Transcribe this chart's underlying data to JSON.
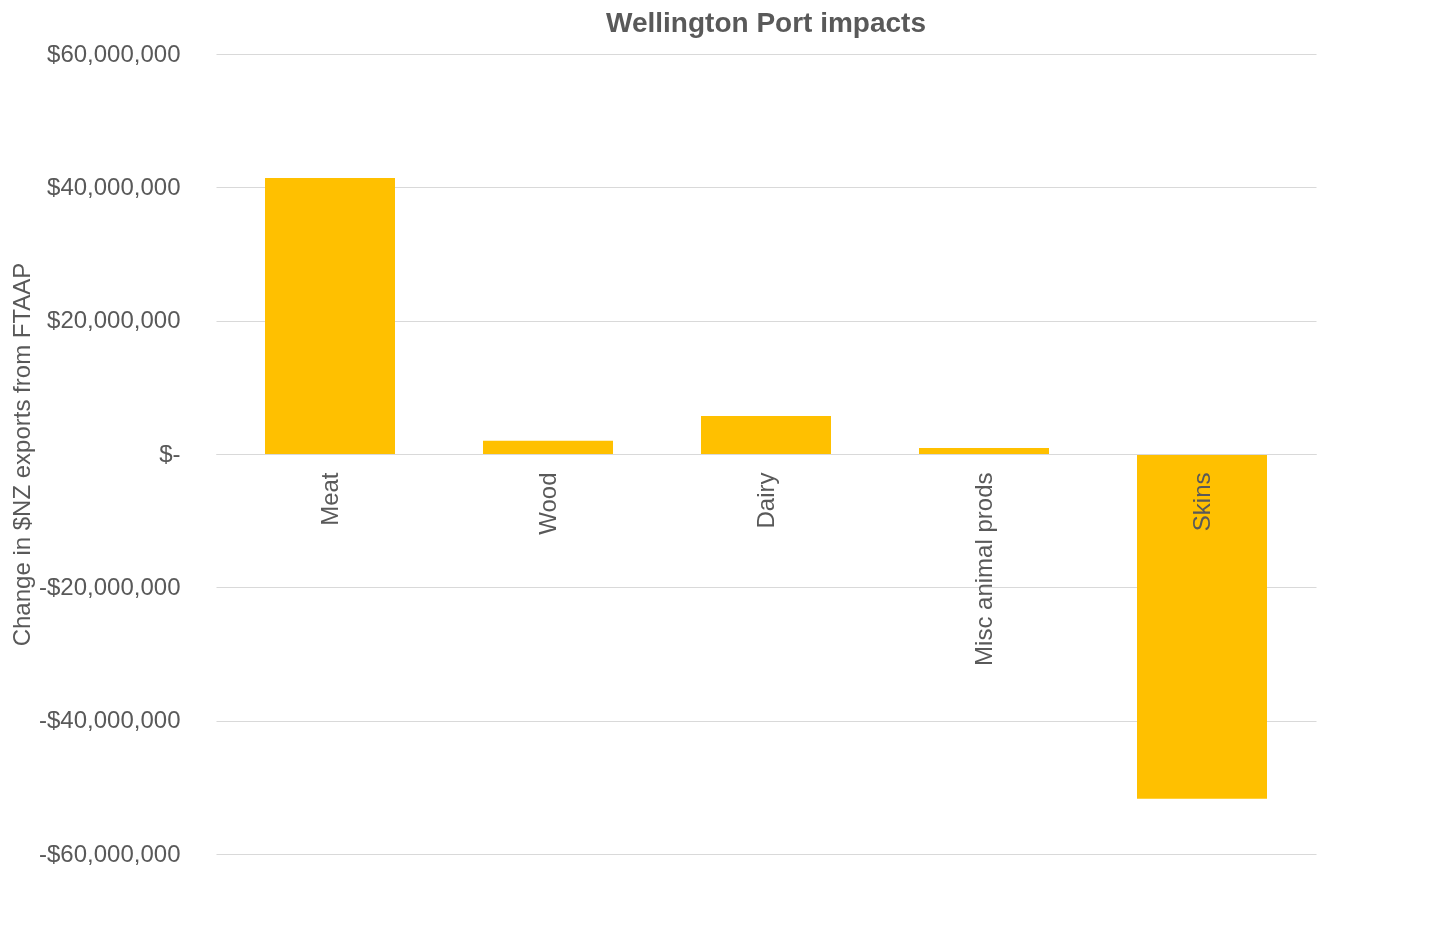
{
  "chart_data": {
    "type": "bar",
    "title": "Wellington Port impacts",
    "ylabel": "Change in $NZ exports from FTAAP",
    "categories": [
      "Meat",
      "Wood",
      "Dairy",
      "Misc animal prods",
      "Skins"
    ],
    "values": [
      41400000,
      2000000,
      5700000,
      900000,
      -51700000
    ],
    "color": "#ffc000",
    "ylim": [
      -60000000,
      60000000
    ],
    "yticks": [
      {
        "value": -60000000,
        "label": "-$60,000,000"
      },
      {
        "value": -40000000,
        "label": "-$40,000,000"
      },
      {
        "value": -20000000,
        "label": "-$20,000,000"
      },
      {
        "value": 0,
        "label": "$-"
      },
      {
        "value": 20000000,
        "label": "$20,000,000"
      },
      {
        "value": 40000000,
        "label": "$40,000,000"
      },
      {
        "value": 60000000,
        "label": "$60,000,000"
      }
    ],
    "grid": "y"
  }
}
